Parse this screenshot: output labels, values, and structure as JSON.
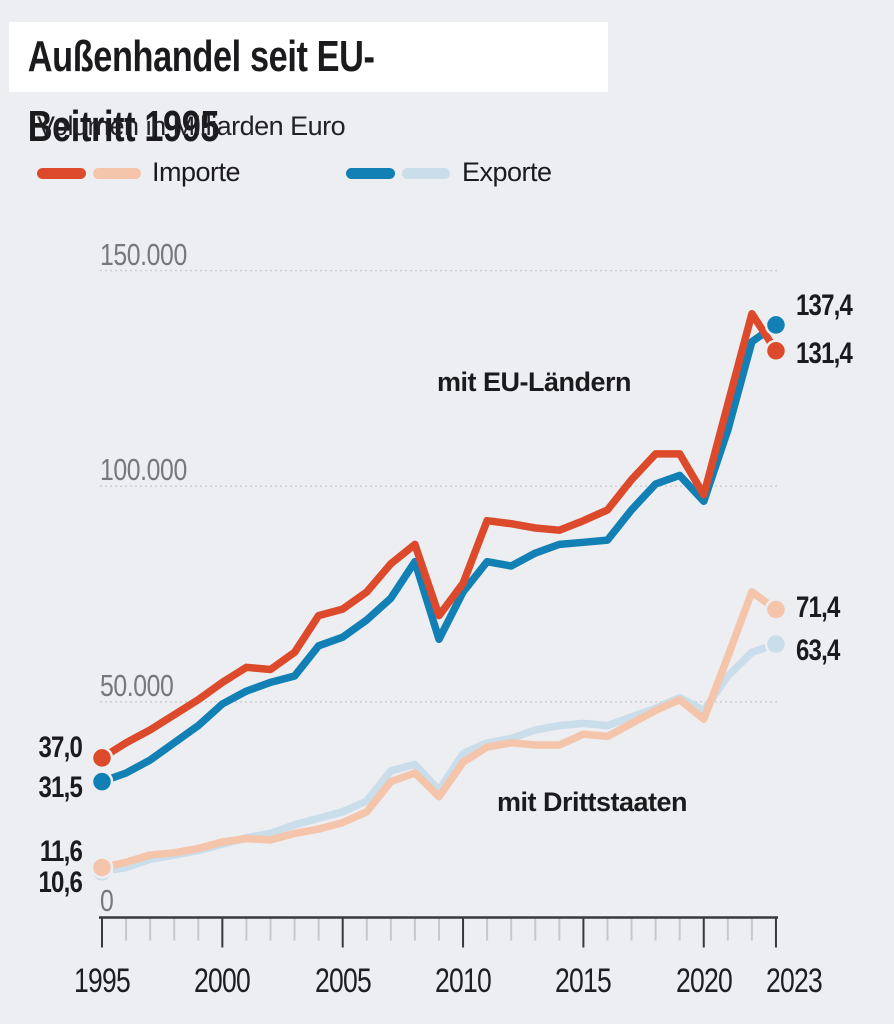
{
  "title": "Außenhandel seit EU-Beitritt 1995",
  "subtitle": "Volumen in Milliarden Euro",
  "colors": {
    "background": "#edeef2",
    "import_dark": "#dc4a2b",
    "import_light": "#f4c5ab",
    "export_dark": "#1280b4",
    "export_light": "#c9ddeb",
    "gridline": "#cbccd0",
    "axis": "#39393c",
    "minor_tick": "#c6c8cc",
    "axis_label_gray": "#77787c",
    "text_dark": "#1b1b1d"
  },
  "legend": {
    "items": [
      {
        "label": "Importe",
        "color": "#dc4a2b",
        "light_color": "#f4c5ab"
      },
      {
        "label": "Exporte",
        "color": "#1280b4",
        "light_color": "#c9ddeb"
      }
    ]
  },
  "annotations": {
    "eu_group": "mit EU-Ländern",
    "third_group": "mit Drittstaaten"
  },
  "y_axis": {
    "ticks": [
      {
        "label": "150.000",
        "value": 150
      },
      {
        "label": "100.000",
        "value": 100
      },
      {
        "label": "50.000",
        "value": 50
      },
      {
        "label": "0",
        "value": 0
      }
    ]
  },
  "x_axis": {
    "labels": [
      {
        "label": "1995",
        "year": 1995
      },
      {
        "label": "2000",
        "year": 2000
      },
      {
        "label": "2005",
        "year": 2005
      },
      {
        "label": "2010",
        "year": 2010
      },
      {
        "label": "2015",
        "year": 2015
      },
      {
        "label": "2020",
        "year": 2020
      },
      {
        "label": "2023",
        "year": 2023
      }
    ]
  },
  "point_labels": {
    "start": [
      {
        "series": "Importe mit EU-Ländern",
        "text": "37,0"
      },
      {
        "series": "Exporte mit EU-Ländern",
        "text": "31,5"
      },
      {
        "series": "Importe mit Drittstaaten",
        "text": "11,6"
      },
      {
        "series": "Exporte mit Drittstaaten",
        "text": "10,6"
      }
    ],
    "end": [
      {
        "series": "Exporte mit EU-Ländern",
        "text": "137,4"
      },
      {
        "series": "Importe mit EU-Ländern",
        "text": "131,4"
      },
      {
        "series": "Importe mit Drittstaaten",
        "text": "71,4"
      },
      {
        "series": "Exporte mit Drittstaaten",
        "text": "63,4"
      }
    ]
  },
  "chart_data": {
    "type": "line",
    "title": "Außenhandel seit EU-Beitritt 1995",
    "subtitle": "Volumen in Milliarden Euro",
    "ylabel": "Volumen in Milliarden Euro",
    "ylim": [
      0,
      150
    ],
    "y_gridlines": [
      150,
      100,
      50
    ],
    "grid": "horizontal",
    "legend_position": "top",
    "x": [
      1995,
      1996,
      1997,
      1998,
      1999,
      2000,
      2001,
      2002,
      2003,
      2004,
      2005,
      2006,
      2007,
      2008,
      2009,
      2010,
      2011,
      2012,
      2013,
      2014,
      2015,
      2016,
      2017,
      2018,
      2019,
      2020,
      2021,
      2022,
      2023
    ],
    "series": [
      {
        "name": "Importe mit EU-Ländern",
        "color": "#dc4a2b",
        "start_label": "37,0",
        "end_label": "131,4",
        "values": [
          37.0,
          40.5,
          43.5,
          47.0,
          50.5,
          54.5,
          58.0,
          57.5,
          61.5,
          70.0,
          71.5,
          75.5,
          82.0,
          86.5,
          70.0,
          77.5,
          92.0,
          91.3,
          90.3,
          89.8,
          92.0,
          94.5,
          101.5,
          107.5,
          107.5,
          98.0,
          119.0,
          140.0,
          131.4
        ]
      },
      {
        "name": "Exporte mit EU-Ländern",
        "color": "#1280b4",
        "start_label": "31,5",
        "end_label": "137,4",
        "values": [
          31.5,
          33.5,
          36.5,
          40.5,
          44.5,
          49.5,
          52.5,
          54.5,
          56.0,
          63.0,
          65.0,
          69.0,
          74.0,
          82.5,
          64.5,
          75.5,
          82.5,
          81.5,
          84.5,
          86.5,
          87.0,
          87.5,
          94.5,
          100.5,
          102.5,
          96.5,
          113.0,
          133.5,
          137.4
        ]
      },
      {
        "name": "Importe mit Drittstaaten",
        "color": "#f4c5ab",
        "start_label": "11,6",
        "end_label": "71,4",
        "values": [
          11.6,
          12.8,
          14.5,
          15.0,
          16.0,
          17.5,
          18.3,
          18.0,
          19.5,
          20.5,
          22.0,
          24.5,
          31.5,
          33.5,
          28.0,
          36.0,
          39.5,
          40.5,
          40.0,
          40.0,
          42.5,
          42.0,
          45.0,
          48.0,
          50.5,
          46.0,
          60.5,
          75.5,
          71.4
        ]
      },
      {
        "name": "Exporte mit Drittstaaten",
        "color": "#c9ddeb",
        "start_label": "10,6",
        "end_label": "63,4",
        "values": [
          10.6,
          11.6,
          13.5,
          14.5,
          15.5,
          17.0,
          18.5,
          19.5,
          21.5,
          23.0,
          24.5,
          27.0,
          34.0,
          35.5,
          29.5,
          38.0,
          40.5,
          41.5,
          43.5,
          44.5,
          45.0,
          44.5,
          46.5,
          48.5,
          51.0,
          48.0,
          56.0,
          61.5,
          63.4
        ]
      }
    ]
  }
}
